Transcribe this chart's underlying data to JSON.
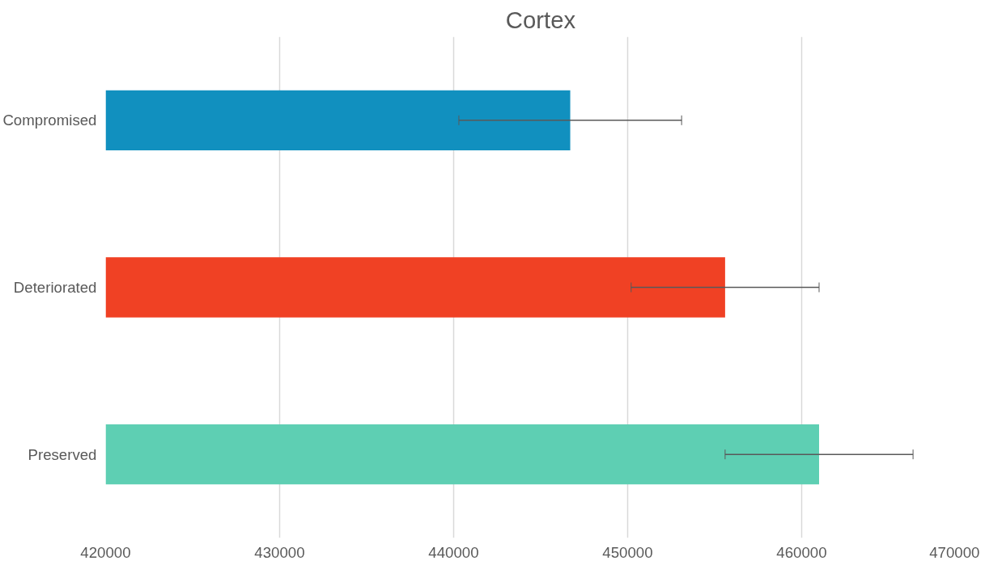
{
  "chart_data": {
    "type": "bar",
    "orientation": "horizontal",
    "title": "Cortex",
    "categories": [
      "Compromised",
      "Deteriorated",
      "Preserved"
    ],
    "values": [
      446700,
      455600,
      461000
    ],
    "errors": [
      6400,
      5400,
      5400
    ],
    "colors": [
      "#1190bf",
      "#f04124",
      "#5ecfb3"
    ],
    "xlim": [
      420000,
      470000
    ],
    "xticks": [
      420000,
      430000,
      440000,
      450000,
      460000,
      470000
    ],
    "grid": "x"
  }
}
